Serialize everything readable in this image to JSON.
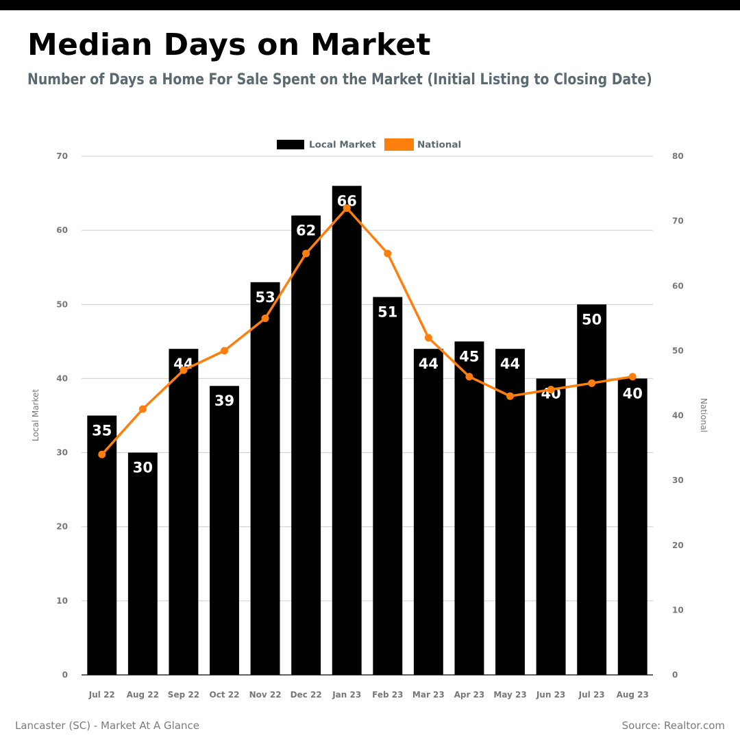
{
  "header": {
    "title": "Median Days on Market",
    "subtitle": "Number of Days a Home For Sale Spent on the Market (Initial Listing to Closing Date)"
  },
  "footer": {
    "left": "Lancaster (SC) - Market At A Glance",
    "right": "Source: Realtor.com"
  },
  "colors": {
    "bar": "#000000",
    "line": "#ff7f0e",
    "grid": "#cccccc",
    "axis_text": "#777777",
    "legend_text": "#5b6a70"
  },
  "chart_data": {
    "type": "bar",
    "categories": [
      "Jul 22",
      "Aug 22",
      "Sep 22",
      "Oct 22",
      "Nov 22",
      "Dec 22",
      "Jan 23",
      "Feb 23",
      "Mar 23",
      "Apr 23",
      "May 23",
      "Jun 23",
      "Jul 23",
      "Aug 23"
    ],
    "series": [
      {
        "name": "Local Market",
        "type": "bar",
        "axis": "left",
        "values": [
          35,
          30,
          44,
          39,
          53,
          62,
          66,
          51,
          44,
          45,
          44,
          40,
          50,
          40
        ]
      },
      {
        "name": "National",
        "type": "line",
        "axis": "right",
        "values": [
          34,
          41,
          47,
          50,
          55,
          65,
          72,
          65,
          52,
          46,
          43,
          44,
          45,
          46
        ]
      }
    ],
    "ylabel": "Local Market",
    "y2label": "National",
    "ylim": [
      0,
      70
    ],
    "y2lim": [
      0,
      80
    ],
    "yticks": [
      0,
      10,
      20,
      30,
      40,
      50,
      60,
      70
    ],
    "y2ticks": [
      0,
      10,
      20,
      30,
      40,
      50,
      60,
      70,
      80
    ],
    "grid": true,
    "legend": "top-center"
  }
}
